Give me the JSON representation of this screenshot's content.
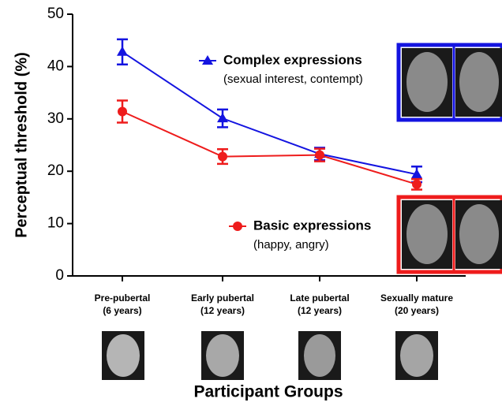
{
  "chart_data": {
    "type": "line",
    "y_label": "Perceptual threshold (%)",
    "x_label": "Participant Groups",
    "categories": [
      "Pre-pubertal",
      "Early pubertal",
      "Late pubertal",
      "Sexually mature"
    ],
    "category_sublabels": [
      "(6 years)",
      "(12 years)",
      "(12 years)",
      "(20 years)"
    ],
    "series": [
      {
        "name": "Complex expressions",
        "description": "(sexual interest, contempt)",
        "color": "#1414e0",
        "marker": "triangle",
        "values": [
          42.8,
          30.1,
          23.3,
          19.4
        ],
        "errors": [
          2.4,
          1.7,
          1.2,
          1.5
        ]
      },
      {
        "name": "Basic expressions",
        "description": "(happy, angry)",
        "color": "#ee1c1c",
        "marker": "circle",
        "values": [
          31.4,
          22.8,
          23.1,
          17.5
        ],
        "errors": [
          2.1,
          1.4,
          1.2,
          1.0
        ]
      }
    ],
    "ylim": [
      0,
      50
    ],
    "yticks": [
      0,
      10,
      20,
      30,
      40,
      50
    ],
    "grid": false
  }
}
